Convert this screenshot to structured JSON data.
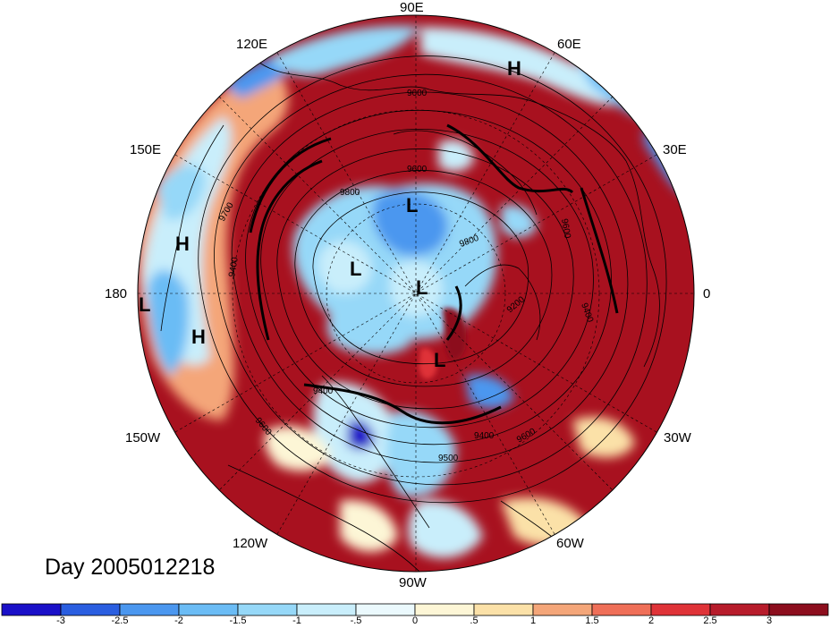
{
  "title": "Day 2005012218",
  "longitude_labels": {
    "e90": "90E",
    "e60": "60E",
    "e30": "30E",
    "zero": "0",
    "w30": "30W",
    "w60": "60W",
    "w90": "90W",
    "w120": "120W",
    "w150": "150W",
    "d180": "180",
    "e150": "150E",
    "e120": "120E"
  },
  "projection": "north polar stereographic",
  "contour_labels": [
    "9600",
    "9600",
    "9700",
    "9800",
    "9800",
    "9400",
    "9200",
    "9400",
    "9400",
    "9600",
    "9500",
    "9400",
    "9600",
    "9600"
  ],
  "pressure_systems": [
    {
      "label": "H",
      "type": "high"
    },
    {
      "label": "H",
      "type": "high"
    },
    {
      "label": "H",
      "type": "high"
    },
    {
      "label": "L",
      "type": "low"
    },
    {
      "label": "L",
      "type": "low"
    },
    {
      "label": "L",
      "type": "low"
    },
    {
      "label": "L",
      "type": "low"
    },
    {
      "label": "L",
      "type": "low"
    }
  ],
  "colorbar": {
    "tick_labels": [
      "-3",
      "-2.5",
      "-2",
      "-1.5",
      "-1",
      "-.5",
      "0",
      ".5",
      "1",
      "1.5",
      "2",
      "2.5",
      "3"
    ],
    "colors": [
      "#1a10c8",
      "#2a5ee0",
      "#4b97ef",
      "#6bbcf5",
      "#96d8f8",
      "#c9eefb",
      "#ebf9fd",
      "#fdf6d6",
      "#fbe1a8",
      "#f4a679",
      "#ef6f58",
      "#df3338",
      "#b71c2b",
      "#8c0e1d"
    ]
  },
  "colors": {
    "ocean_background": "#ffffff",
    "warm": "#a8111f",
    "cold": "#4b97ef",
    "contour": "#000000"
  }
}
